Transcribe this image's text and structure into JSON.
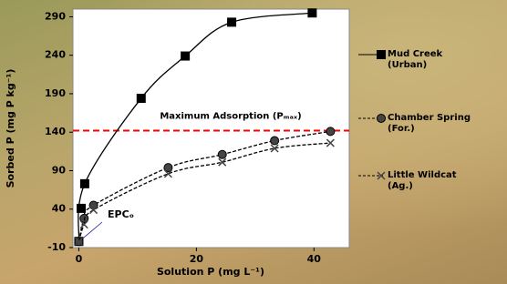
{
  "chart_data": {
    "type": "line",
    "xlabel": "Solution P (mg L⁻¹)",
    "ylabel": "Sorbed P (mg P kg⁻¹)",
    "xlim": [
      -1,
      46
    ],
    "xticks": [
      0,
      20,
      40
    ],
    "ylim": [
      -10,
      300
    ],
    "yticks": [
      -10,
      40,
      90,
      140,
      190,
      240,
      290
    ],
    "series": [
      {
        "name": "Mud Creek (Urban)",
        "color": "#000000",
        "marker": "square",
        "dash": false,
        "x": [
          0,
          1,
          10.6,
          18.1,
          26,
          39.7
        ],
        "values": [
          -2,
          73,
          184,
          239,
          283,
          295
        ]
      },
      {
        "name": "Chamber Spring (For.)",
        "color": "#000000",
        "marker": "circle",
        "dash": true,
        "x": [
          0,
          0.9,
          2.5,
          15.2,
          24.4,
          33.3,
          42.8
        ],
        "values": [
          -2,
          28,
          45,
          94,
          111,
          129,
          141
        ]
      },
      {
        "name": "Little Wildcat (Ag.)",
        "color": "#000000",
        "marker": "cross",
        "dash": true,
        "x": [
          0,
          0.9,
          2.5,
          15.2,
          24.4,
          33.3,
          42.8
        ],
        "values": [
          -2,
          20,
          39,
          86,
          101,
          119,
          126
        ]
      }
    ],
    "extra_point": {
      "x": 0.4,
      "value": 41
    },
    "reference_line": {
      "value": 142,
      "label": "Maximum Adsorption (Pₘₐₓ)",
      "color": "#ff0000"
    },
    "annotation": {
      "text": "EPCₒ",
      "color": "#1a1aa0"
    }
  }
}
